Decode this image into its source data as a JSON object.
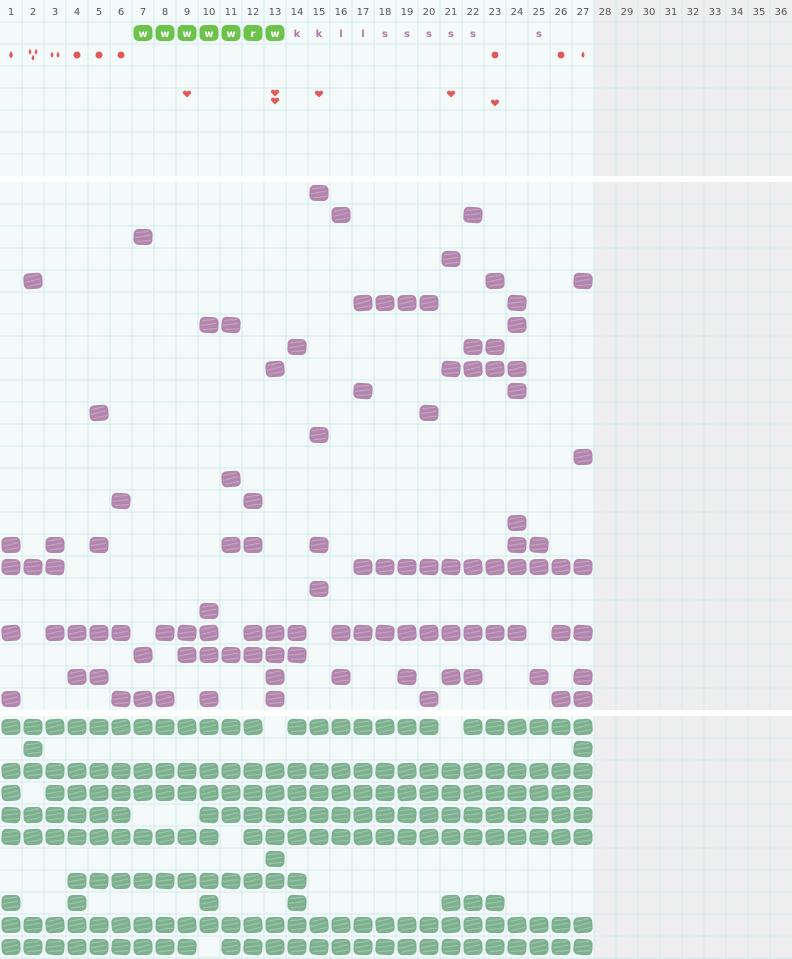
{
  "columns": [
    "1",
    "2",
    "3",
    "4",
    "5",
    "6",
    "7",
    "8",
    "9",
    "10",
    "11",
    "12",
    "13",
    "14",
    "15",
    "16",
    "17",
    "18",
    "19",
    "20",
    "21",
    "22",
    "23",
    "24",
    "25",
    "26",
    "27",
    "28",
    "29",
    "30",
    "31",
    "32",
    "33",
    "34",
    "35",
    "36"
  ],
  "habit_row": [
    null,
    null,
    null,
    null,
    null,
    null,
    "w",
    "w",
    "w",
    "w",
    "w",
    "r",
    "w",
    "k",
    "k",
    "l",
    "l",
    "s",
    "s",
    "s",
    "s",
    "s",
    null,
    null,
    "s",
    null,
    null,
    null,
    null,
    null,
    null,
    null,
    null,
    null,
    null,
    null
  ]
}
